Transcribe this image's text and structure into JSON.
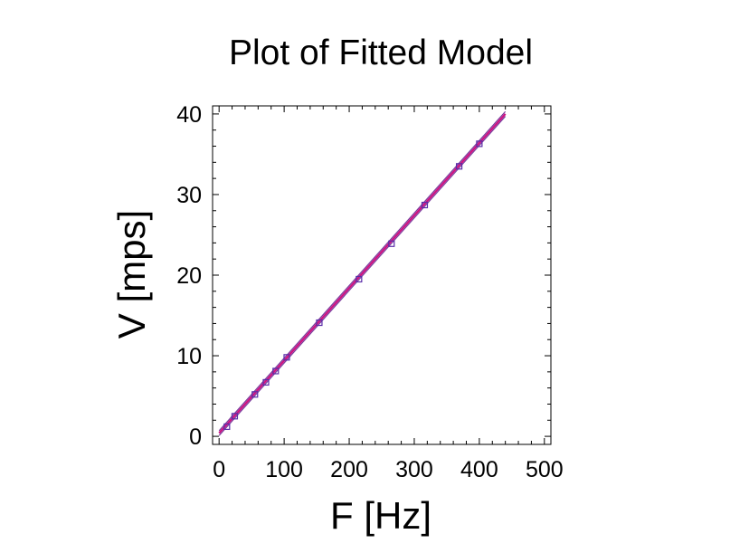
{
  "chart_data": {
    "type": "scatter",
    "title": "Plot of Fitted Model",
    "xlabel": "F [Hz]",
    "ylabel": "V [mps]",
    "xlim": [
      -10,
      510
    ],
    "ylim": [
      -1,
      41
    ],
    "xticks": [
      0,
      100,
      200,
      300,
      400,
      500
    ],
    "yticks": [
      0,
      10,
      20,
      30,
      40
    ],
    "grid": false,
    "series": [
      {
        "kind": "points",
        "marker": "square",
        "color": "#5a2ca8",
        "x": [
          12,
          24,
          55,
          72,
          87,
          104,
          154,
          215,
          265,
          316,
          369,
          400
        ],
        "y": [
          1.2,
          2.5,
          5.2,
          6.7,
          8.1,
          9.8,
          14.1,
          19.5,
          23.9,
          28.7,
          33.5,
          36.3
        ]
      },
      {
        "kind": "line",
        "color": "#d01080",
        "x": [
          0,
          440
        ],
        "y": [
          0.4,
          40.0
        ]
      },
      {
        "kind": "band-upper",
        "color": "#7a3a9c",
        "x": [
          0,
          440
        ],
        "y": [
          0.7,
          40.3
        ]
      },
      {
        "kind": "band-lower",
        "color": "#7a3a9c",
        "x": [
          0,
          440
        ],
        "y": [
          0.1,
          39.7
        ]
      }
    ]
  }
}
